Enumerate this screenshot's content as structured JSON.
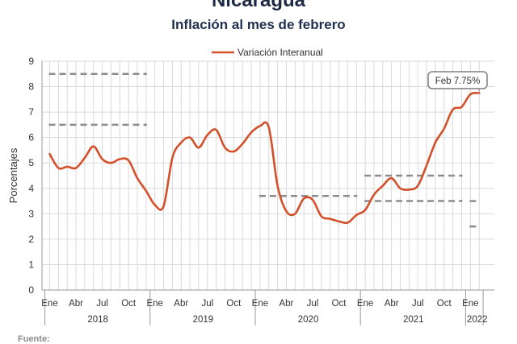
{
  "header": {
    "country": "Nicaragua",
    "title": "Inflación al mes de febrero",
    "source_label": "Fuente:"
  },
  "colors": {
    "series": "#d4502a",
    "reference": "#8c8c8c",
    "grid": "#d9d9d9",
    "axis": "#9a9a9a"
  },
  "chart_data": {
    "type": "line",
    "title": "Inflación al mes de febrero",
    "ylabel": "Porcentajes",
    "xlabel": "",
    "ylim": [
      0,
      9
    ],
    "yticks": [
      "0",
      "1",
      "2",
      "3",
      "4",
      "5",
      "6",
      "7",
      "8",
      "9"
    ],
    "grid": true,
    "legend": "top-center",
    "month_labels": [
      "Ene",
      "Abr",
      "Jul",
      "Oct",
      "Ene",
      "Abr",
      "Jul",
      "Oct",
      "Ene",
      "Abr",
      "Jul",
      "Oct",
      "Ene",
      "Abr",
      "Jul",
      "Oct",
      "Ene"
    ],
    "years": [
      "2018",
      "2019",
      "2020",
      "2021",
      "2022"
    ],
    "series": [
      {
        "name": "Variación Interanual",
        "x": [
          "2018-01",
          "2018-02",
          "2018-03",
          "2018-04",
          "2018-05",
          "2018-06",
          "2018-07",
          "2018-08",
          "2018-09",
          "2018-10",
          "2018-11",
          "2018-12",
          "2019-01",
          "2019-02",
          "2019-03",
          "2019-04",
          "2019-05",
          "2019-06",
          "2019-07",
          "2019-08",
          "2019-09",
          "2019-10",
          "2019-11",
          "2019-12",
          "2020-01",
          "2020-02",
          "2020-03",
          "2020-04",
          "2020-05",
          "2020-06",
          "2020-07",
          "2020-08",
          "2020-09",
          "2020-10",
          "2020-11",
          "2020-12",
          "2021-01",
          "2021-02",
          "2021-03",
          "2021-04",
          "2021-05",
          "2021-06",
          "2021-07",
          "2021-08",
          "2021-09",
          "2021-10",
          "2021-11",
          "2021-12",
          "2022-01",
          "2022-02"
        ],
        "values": [
          5.35,
          4.8,
          4.85,
          4.8,
          5.2,
          5.65,
          5.15,
          5.0,
          5.15,
          5.1,
          4.4,
          3.9,
          3.35,
          3.3,
          5.2,
          5.8,
          6.0,
          5.6,
          6.1,
          6.3,
          5.6,
          5.45,
          5.75,
          6.2,
          6.45,
          6.4,
          4.1,
          3.1,
          3.0,
          3.6,
          3.55,
          2.9,
          2.8,
          2.7,
          2.65,
          2.95,
          3.15,
          3.75,
          4.1,
          4.4,
          4.0,
          3.95,
          4.1,
          4.9,
          5.8,
          6.35,
          7.1,
          7.2,
          7.7,
          7.75
        ]
      }
    ],
    "reference_lines": [
      {
        "from": "2018-01",
        "to": "2018-12",
        "y": 8.5
      },
      {
        "from": "2018-01",
        "to": "2018-12",
        "y": 6.5
      },
      {
        "from": "2020-01",
        "to": "2020-12",
        "y": 3.7
      },
      {
        "from": "2021-01",
        "to": "2021-12",
        "y": 4.5
      },
      {
        "from": "2021-01",
        "to": "2021-12",
        "y": 3.5
      },
      {
        "from": "2022-01",
        "to": "2022-02",
        "y": 3.5
      },
      {
        "from": "2022-01",
        "to": "2022-02",
        "y": 2.5
      }
    ],
    "annotation": {
      "text": "Feb 7.75%",
      "at": "2022-02",
      "value": 7.75
    }
  }
}
